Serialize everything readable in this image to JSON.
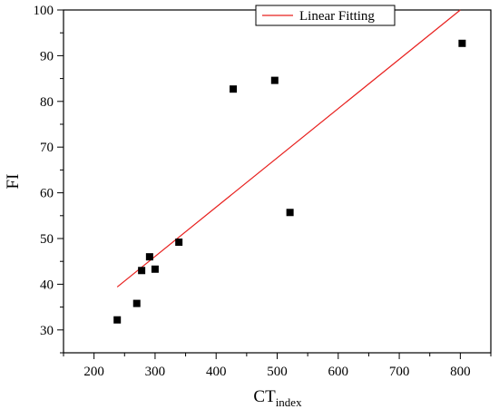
{
  "chart_data": {
    "type": "scatter",
    "xlabel": "CT",
    "xlabel_subscript": "index",
    "ylabel": "FI",
    "xlim": [
      150,
      850
    ],
    "ylim": [
      25,
      100
    ],
    "x_ticks": [
      "200",
      "300",
      "400",
      "500",
      "600",
      "700",
      "800"
    ],
    "y_ticks": [
      "30",
      "40",
      "50",
      "60",
      "70",
      "80",
      "90",
      "100"
    ],
    "grid": false,
    "legend_position": "top",
    "series": [
      {
        "type": "scatter",
        "marker": "square",
        "color": "#000000",
        "points": [
          {
            "x": 238,
            "y": 32.2
          },
          {
            "x": 270,
            "y": 35.8
          },
          {
            "x": 278,
            "y": 43.0
          },
          {
            "x": 291,
            "y": 46.0
          },
          {
            "x": 300,
            "y": 43.3
          },
          {
            "x": 339,
            "y": 49.2
          },
          {
            "x": 428,
            "y": 82.7
          },
          {
            "x": 496,
            "y": 84.6
          },
          {
            "x": 521,
            "y": 55.7
          },
          {
            "x": 803,
            "y": 92.7
          }
        ]
      },
      {
        "type": "line",
        "name": "Linear Fitting",
        "color": "#e8201e",
        "points": [
          {
            "x": 238,
            "y": 39.4
          },
          {
            "x": 800,
            "y": 100.0
          }
        ]
      }
    ]
  }
}
